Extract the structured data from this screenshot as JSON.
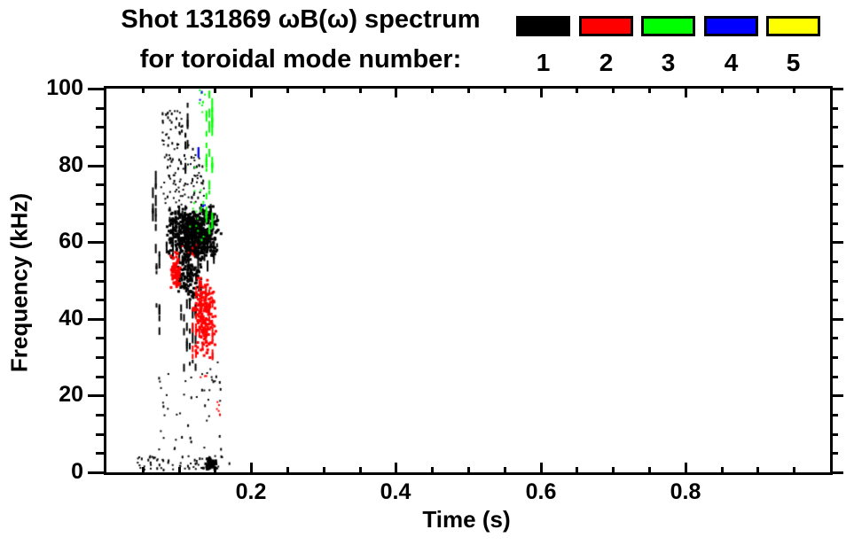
{
  "window": {
    "background": "#ffffff"
  },
  "title": {
    "line1": "Shot 131869 ωB(ω) spectrum",
    "line2": "for toroidal mode number:"
  },
  "legend": {
    "entries": [
      {
        "mode": "1",
        "color": "#000000"
      },
      {
        "mode": "2",
        "color": "#ff0000"
      },
      {
        "mode": "3",
        "color": "#00ff00"
      },
      {
        "mode": "4",
        "color": "#0000ff"
      },
      {
        "mode": "5",
        "color": "#ffff00"
      }
    ]
  },
  "axes": {
    "xlabel": "Time (s)",
    "ylabel": "Frequency (kHz)"
  },
  "chart_data": {
    "type": "scatter",
    "title": "Shot 131869 ωB(ω) spectrum for toroidal mode number: 1 2 3 4 5",
    "xlabel": "Time (s)",
    "ylabel": "Frequency (kHz)",
    "xlim": [
      0.0,
      1.0
    ],
    "ylim": [
      0,
      100
    ],
    "x_major_ticks": [
      0.2,
      0.4,
      0.6,
      0.8
    ],
    "x_tick_labels": [
      "0.2",
      "0.4",
      "0.6",
      "0.8"
    ],
    "x_minor_step": 0.05,
    "y_major_ticks": [
      0,
      20,
      40,
      60,
      80,
      100
    ],
    "y_tick_labels": [
      "0",
      "20",
      "40",
      "60",
      "80",
      "100"
    ],
    "y_minor_step": 5,
    "grid": false,
    "legend_position": "top-right-above-plot",
    "description": "Magnetic spectrogram scatter: mode activity only between t=0.03-0.17 s; n=1 (black) dominates 55-70 kHz, n=2 (red) 30-58 kHz, n=3 (green) 64-100 kHz near t=0.14 s, n=4 (blue) isolated specks; n=5 (yellow) absent.",
    "series": [
      {
        "name": "n=1",
        "mode": 1,
        "color": "#000000",
        "clusters": [
          {
            "style": "speck",
            "t": [
              0.034,
              0.17
            ],
            "f": [
              0.8,
              4.5
            ],
            "n": 60
          },
          {
            "style": "blob",
            "t": [
              0.132,
              0.152
            ],
            "f": [
              0.8,
              4.0
            ],
            "n": 50
          },
          {
            "style": "speck",
            "t": [
              0.065,
              0.158
            ],
            "f": [
              5,
              27
            ],
            "n": 36
          },
          {
            "style": "vdash",
            "t": [
              0.068,
              0.076
            ],
            "f": [
              34,
              58
            ],
            "n": 12
          },
          {
            "style": "vdash",
            "t": [
              0.063,
              0.071
            ],
            "f": [
              58,
              79
            ],
            "n": 12
          },
          {
            "style": "blob",
            "t": [
              0.08,
              0.158
            ],
            "f": [
              55,
              70
            ],
            "n": 620
          },
          {
            "style": "vdash",
            "t": [
              0.082,
              0.156
            ],
            "f": [
              55,
              70
            ],
            "n": 55
          },
          {
            "style": "blob",
            "t": [
              0.093,
              0.132
            ],
            "f": [
              45,
              57
            ],
            "n": 130
          },
          {
            "style": "speck",
            "t": [
              0.073,
              0.134
            ],
            "f": [
              70,
              86
            ],
            "n": 100
          },
          {
            "style": "vdash",
            "t": [
              0.108,
              0.114
            ],
            "f": [
              79,
              97
            ],
            "n": 10
          },
          {
            "style": "speck",
            "t": [
              0.076,
              0.09
            ],
            "f": [
              86,
              95
            ],
            "n": 20
          },
          {
            "style": "speck",
            "t": [
              0.093,
              0.104
            ],
            "f": [
              88,
              95
            ],
            "n": 14
          },
          {
            "style": "vdash",
            "t": [
              0.102,
              0.126
            ],
            "f": [
              28,
              48
            ],
            "n": 24
          },
          {
            "style": "speck",
            "t": [
              0.128,
              0.158
            ],
            "f": [
              19,
              30
            ],
            "n": 12
          }
        ]
      },
      {
        "name": "n=2",
        "mode": 2,
        "color": "#ff0000",
        "clusters": [
          {
            "style": "blob",
            "t": [
              0.086,
              0.101
            ],
            "f": [
              47,
              58
            ],
            "n": 80
          },
          {
            "style": "blob",
            "t": [
              0.118,
              0.15
            ],
            "f": [
              30,
              52
            ],
            "n": 190
          },
          {
            "style": "vdash",
            "t": [
              0.118,
              0.15
            ],
            "f": [
              30,
              52
            ],
            "n": 26
          },
          {
            "style": "speck",
            "t": [
              0.095,
              0.125
            ],
            "f": [
              56,
              62
            ],
            "n": 8
          },
          {
            "style": "speck",
            "t": [
              0.15,
              0.157
            ],
            "f": [
              15,
              19
            ],
            "n": 5
          },
          {
            "style": "speck",
            "t": [
              0.128,
              0.14
            ],
            "f": [
              23,
              27
            ],
            "n": 3
          }
        ]
      },
      {
        "name": "n=3",
        "mode": 3,
        "color": "#00ff00",
        "clusters": [
          {
            "style": "vdash",
            "t": [
              0.137,
              0.149
            ],
            "f": [
              64,
              100
            ],
            "n": 40
          },
          {
            "style": "speck",
            "t": [
              0.113,
              0.134
            ],
            "f": [
              60,
              80
            ],
            "n": 16
          },
          {
            "style": "speck",
            "t": [
              0.126,
              0.136
            ],
            "f": [
              90,
              100
            ],
            "n": 7
          }
        ]
      },
      {
        "name": "n=4",
        "mode": 4,
        "color": "#0000ff",
        "clusters": [
          {
            "style": "speck",
            "t": [
              0.127,
              0.131
            ],
            "f": [
              97,
              100
            ],
            "n": 2
          },
          {
            "style": "vdash",
            "t": [
              0.124,
              0.128
            ],
            "f": [
              83,
              87
            ],
            "n": 2
          },
          {
            "style": "speck",
            "t": [
              0.131,
              0.136
            ],
            "f": [
              68,
              71
            ],
            "n": 2
          }
        ]
      },
      {
        "name": "n=5",
        "mode": 5,
        "color": "#ffff00",
        "clusters": []
      }
    ]
  }
}
